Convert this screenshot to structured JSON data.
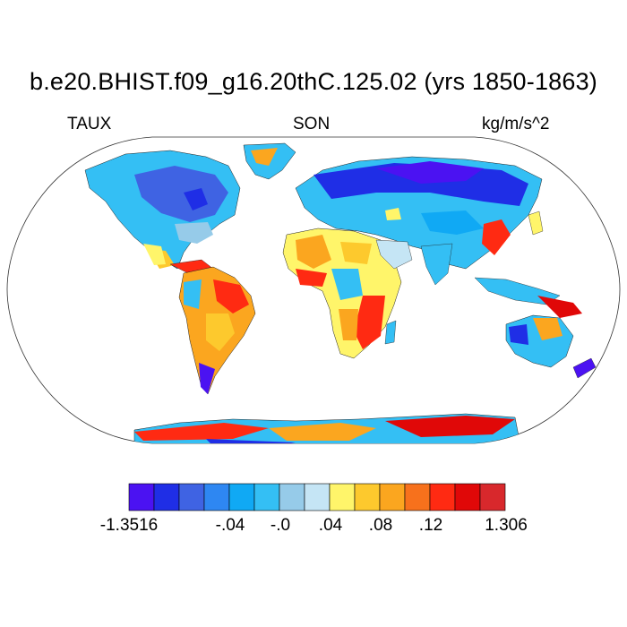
{
  "figure": {
    "title": "b.e20.BHIST.f09_g16.20thC.125.02 (yrs 1850-1863)",
    "left_label": "TAUX",
    "center_label": "SON",
    "right_label": "kg/m/s^2"
  },
  "colorbar": {
    "colors": [
      "#4b12f2",
      "#1f2ee6",
      "#3f63e3",
      "#2e87f2",
      "#10a9f4",
      "#34bff4",
      "#96cbe9",
      "#c5e5f5",
      "#fff56a",
      "#fdc92d",
      "#fba61f",
      "#f7711c",
      "#ff2a12",
      "#e00808",
      "#d8282c"
    ],
    "tick_labels": [
      "-1.3516",
      "-.04",
      "-.0",
      ".04",
      ".08",
      ".12",
      "1.306"
    ]
  },
  "legend_map": {
    "ocean": "#ffffff",
    "outline": "#000000"
  }
}
